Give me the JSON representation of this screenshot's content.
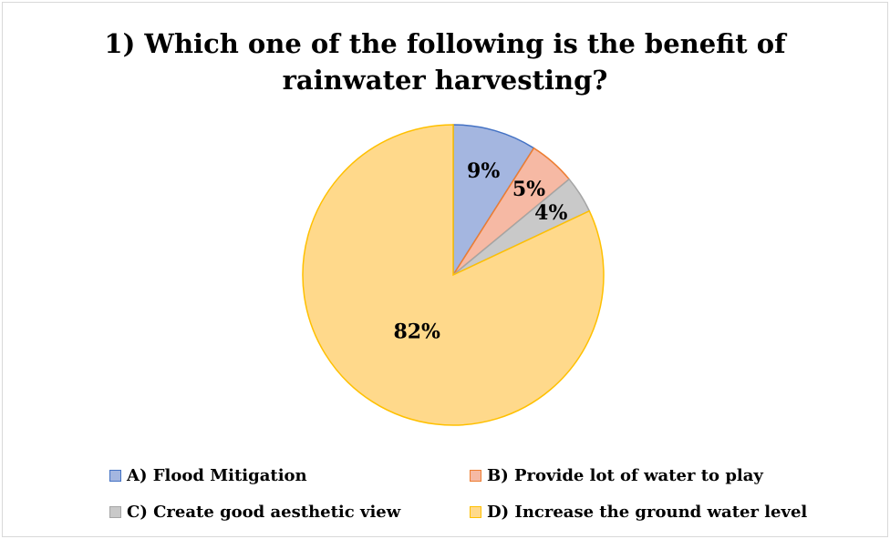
{
  "chart_data": {
    "type": "pie",
    "title": "1) Which one of the following is the benefit of\nrainwater harvesting?",
    "categories": [
      "A) Flood Mitigation",
      "B) Provide lot of water to play",
      "C) Create good aesthetic view",
      "D) Increase the ground water level"
    ],
    "values": [
      9,
      5,
      4,
      82
    ],
    "data_labels": [
      "9%",
      "5%",
      "4%",
      "82%"
    ],
    "colors": {
      "fill": [
        "#a4b6e0",
        "#f6b9a4",
        "#c9c9c9",
        "#ffd98b"
      ],
      "stroke": [
        "#4472c4",
        "#ed7d31",
        "#a5a5a5",
        "#ffc000"
      ]
    },
    "legend_position": "bottom"
  }
}
